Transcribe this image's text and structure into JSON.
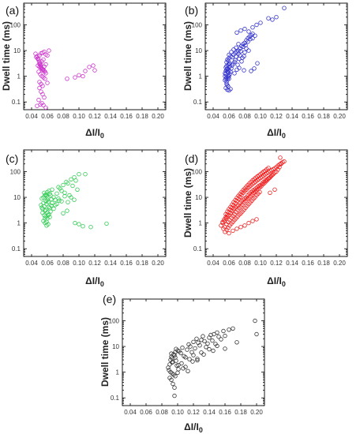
{
  "chart_data": [
    {
      "label": "(a)",
      "type": "scatter",
      "color": "#cc33cc",
      "xlabel": "ΔI/I0",
      "ylabel": "Dwell time (ms)",
      "xlim": [
        0.03,
        0.21
      ],
      "ylim": [
        0.05,
        700
      ],
      "yscale": "log",
      "xticks": [
        "0.04",
        "0.06",
        "0.08",
        "0.10",
        "0.12",
        "0.14",
        "0.16",
        "0.18",
        "0.20"
      ],
      "yticks": [
        "0.1",
        "1",
        "10",
        "100"
      ],
      "x": [
        0.045,
        0.047,
        0.048,
        0.049,
        0.05,
        0.05,
        0.051,
        0.052,
        0.052,
        0.053,
        0.054,
        0.055,
        0.056,
        0.057,
        0.058,
        0.046,
        0.048,
        0.05,
        0.052,
        0.054,
        0.056,
        0.058,
        0.06,
        0.062,
        0.049,
        0.051,
        0.053,
        0.055,
        0.057,
        0.05,
        0.052,
        0.054,
        0.048,
        0.05,
        0.052,
        0.054,
        0.056,
        0.058,
        0.051,
        0.053,
        0.055,
        0.05,
        0.052,
        0.054,
        0.056,
        0.049,
        0.053,
        0.047,
        0.051,
        0.055,
        0.058,
        0.06,
        0.085,
        0.095,
        0.1,
        0.105,
        0.108,
        0.113,
        0.118,
        0.12
      ],
      "y": [
        7.5,
        6.0,
        5.0,
        4.2,
        3.5,
        3.0,
        2.8,
        2.5,
        2.2,
        2.0,
        1.9,
        1.8,
        1.6,
        1.5,
        1.3,
        5.5,
        4.8,
        6.5,
        7.8,
        8.2,
        9.0,
        7.0,
        6.5,
        10.0,
        1.5,
        1.2,
        1.0,
        0.9,
        0.8,
        0.6,
        0.5,
        0.42,
        2.6,
        2.3,
        2.1,
        1.7,
        2.4,
        2.9,
        3.2,
        3.8,
        4.5,
        0.35,
        0.25,
        0.2,
        0.15,
        0.12,
        0.09,
        0.07,
        0.08,
        0.075,
        0.06,
        0.55,
        0.8,
        0.9,
        1.1,
        1.0,
        1.6,
        2.3,
        2.6,
        1.7
      ]
    },
    {
      "label": "(b)",
      "type": "scatter",
      "color": "#3333cc",
      "xlabel": "ΔI/I0",
      "ylabel": "Dwell time (ms)",
      "xlim": [
        0.03,
        0.21
      ],
      "ylim": [
        0.05,
        700
      ],
      "yscale": "log",
      "xticks": [
        "0.04",
        "0.06",
        "0.08",
        "0.10",
        "0.12",
        "0.14",
        "0.16",
        "0.18",
        "0.20"
      ],
      "yticks": [
        "0.1",
        "1",
        "10",
        "100"
      ],
      "x": [
        0.055,
        0.056,
        0.057,
        0.058,
        0.059,
        0.06,
        0.055,
        0.056,
        0.057,
        0.058,
        0.059,
        0.06,
        0.061,
        0.055,
        0.056,
        0.057,
        0.058,
        0.059,
        0.06,
        0.056,
        0.057,
        0.058,
        0.059,
        0.06,
        0.061,
        0.057,
        0.058,
        0.059,
        0.056,
        0.058,
        0.06,
        0.062,
        0.057,
        0.059,
        0.061,
        0.058,
        0.06,
        0.062,
        0.064,
        0.066,
        0.068,
        0.07,
        0.072,
        0.074,
        0.076,
        0.078,
        0.08,
        0.082,
        0.084,
        0.086,
        0.088,
        0.09,
        0.065,
        0.068,
        0.071,
        0.074,
        0.077,
        0.08,
        0.063,
        0.067,
        0.07,
        0.073,
        0.076,
        0.079,
        0.082,
        0.085,
        0.062,
        0.064,
        0.069,
        0.072,
        0.075,
        0.078,
        0.081,
        0.084,
        0.087,
        0.09,
        0.093,
        0.07,
        0.075,
        0.08,
        0.085,
        0.09,
        0.095,
        0.1,
        0.11,
        0.115,
        0.12,
        0.13,
        0.088,
        0.092,
        0.096,
        0.067,
        0.073,
        0.079,
        0.06,
        0.063,
        0.066,
        0.069,
        0.072
      ],
      "y": [
        1.0,
        1.2,
        0.9,
        1.5,
        1.1,
        0.8,
        1.3,
        1.6,
        1.8,
        2.0,
        1.4,
        1.7,
        1.2,
        0.7,
        0.8,
        0.6,
        0.75,
        0.9,
        1.0,
        2.2,
        2.5,
        1.9,
        2.8,
        3.0,
        2.4,
        0.5,
        0.45,
        0.4,
        0.35,
        0.3,
        0.28,
        0.32,
        3.5,
        4.0,
        3.2,
        4.5,
        5.0,
        6.0,
        5.5,
        7.0,
        8.0,
        9.0,
        10.0,
        12.0,
        15.0,
        18.0,
        20.0,
        25.0,
        30.0,
        35.0,
        40.0,
        45.0,
        3.0,
        4.2,
        2.8,
        6.5,
        5.2,
        8.5,
        2.0,
        3.6,
        1.8,
        4.8,
        3.8,
        6.0,
        12.0,
        10.0,
        1.5,
        2.6,
        5.8,
        7.5,
        9.5,
        14.0,
        16.0,
        22.0,
        28.0,
        30.0,
        38.0,
        50.0,
        60.0,
        70.0,
        55.0,
        80.0,
        100.0,
        120.0,
        180.0,
        160.0,
        200.0,
        450.0,
        1.6,
        2.0,
        3.2,
        1.3,
        2.1,
        1.7,
        6.8,
        8.8,
        11.0,
        13.0,
        18.0
      ]
    },
    {
      "label": "(c)",
      "type": "scatter",
      "color": "#33cc55",
      "xlabel": "ΔI/I0",
      "ylabel": "Dwell time (ms)",
      "xlim": [
        0.03,
        0.21
      ],
      "ylim": [
        0.05,
        700
      ],
      "yscale": "log",
      "xticks": [
        "0.04",
        "0.06",
        "0.08",
        "0.10",
        "0.12",
        "0.14",
        "0.16",
        "0.18",
        "0.20"
      ],
      "yticks": [
        "0.1",
        "1",
        "10",
        "100"
      ],
      "x": [
        0.052,
        0.053,
        0.054,
        0.055,
        0.056,
        0.057,
        0.058,
        0.059,
        0.06,
        0.061,
        0.062,
        0.063,
        0.054,
        0.056,
        0.058,
        0.06,
        0.062,
        0.064,
        0.053,
        0.055,
        0.057,
        0.059,
        0.061,
        0.063,
        0.065,
        0.055,
        0.057,
        0.059,
        0.061,
        0.056,
        0.058,
        0.06,
        0.062,
        0.064,
        0.066,
        0.068,
        0.07,
        0.072,
        0.074,
        0.076,
        0.078,
        0.08,
        0.082,
        0.084,
        0.086,
        0.088,
        0.09,
        0.092,
        0.094,
        0.096,
        0.098,
        0.1,
        0.066,
        0.07,
        0.074,
        0.078,
        0.082,
        0.086,
        0.09,
        0.094,
        0.058,
        0.06,
        0.065,
        0.068,
        0.072,
        0.075,
        0.08,
        0.085,
        0.095,
        0.1,
        0.108,
        0.105,
        0.115,
        0.135,
        0.057,
        0.059,
        0.061,
        0.063
      ],
      "y": [
        5.0,
        4.0,
        3.5,
        6.0,
        4.5,
        3.0,
        7.0,
        5.5,
        8.0,
        6.5,
        4.2,
        3.8,
        2.5,
        2.0,
        1.8,
        1.5,
        2.2,
        2.8,
        9.0,
        10.0,
        12.0,
        11.0,
        9.5,
        14.0,
        8.5,
        1.2,
        1.0,
        0.8,
        0.9,
        15.0,
        13.0,
        16.0,
        18.0,
        12.0,
        20.0,
        10.0,
        8.0,
        14.0,
        25.0,
        22.0,
        18.0,
        30.0,
        15.0,
        40.0,
        35.0,
        12.0,
        50.0,
        28.0,
        60.0,
        45.0,
        20.0,
        80.0,
        6.0,
        5.0,
        9.0,
        7.0,
        11.0,
        6.5,
        10.0,
        8.0,
        3.2,
        2.6,
        4.8,
        3.6,
        5.5,
        7.5,
        2.4,
        3.0,
        1.0,
        0.9,
        80.0,
        0.75,
        0.7,
        0.95,
        1.5,
        1.1,
        2.0,
        1.7
      ]
    },
    {
      "label": "(d)",
      "type": "scatter",
      "color": "#ee2222",
      "xlabel": "ΔI/I0",
      "ylabel": "Dwell time (ms)",
      "xlim": [
        0.03,
        0.21
      ],
      "ylim": [
        0.05,
        700
      ],
      "yscale": "log",
      "xticks": [
        "0.04",
        "0.06",
        "0.08",
        "0.10",
        "0.12",
        "0.14",
        "0.16",
        "0.18",
        "0.20"
      ],
      "yticks": [
        "0.1",
        "1",
        "10",
        "100"
      ],
      "x": [
        0.05,
        0.052,
        0.054,
        0.056,
        0.058,
        0.06,
        0.062,
        0.064,
        0.066,
        0.068,
        0.07,
        0.072,
        0.074,
        0.076,
        0.078,
        0.08,
        0.082,
        0.084,
        0.086,
        0.088,
        0.09,
        0.092,
        0.094,
        0.096,
        0.098,
        0.1,
        0.102,
        0.104,
        0.106,
        0.108,
        0.11,
        0.112,
        0.114,
        0.116,
        0.118,
        0.12,
        0.122,
        0.124,
        0.126,
        0.053,
        0.055,
        0.057,
        0.059,
        0.061,
        0.063,
        0.065,
        0.067,
        0.069,
        0.071,
        0.073,
        0.075,
        0.077,
        0.079,
        0.081,
        0.083,
        0.085,
        0.087,
        0.089,
        0.091,
        0.093,
        0.095,
        0.097,
        0.099,
        0.101,
        0.103,
        0.105,
        0.107,
        0.109,
        0.111,
        0.113,
        0.115,
        0.056,
        0.058,
        0.06,
        0.062,
        0.064,
        0.066,
        0.068,
        0.07,
        0.072,
        0.074,
        0.076,
        0.078,
        0.08,
        0.082,
        0.084,
        0.086,
        0.088,
        0.09,
        0.092,
        0.094,
        0.096,
        0.098,
        0.1,
        0.102,
        0.104,
        0.106,
        0.108,
        0.11,
        0.055,
        0.057,
        0.059,
        0.061,
        0.063,
        0.065,
        0.067,
        0.069,
        0.071,
        0.073,
        0.075,
        0.077,
        0.079,
        0.081,
        0.083,
        0.085,
        0.087,
        0.089,
        0.091,
        0.093,
        0.095,
        0.097,
        0.099,
        0.052,
        0.054,
        0.056,
        0.058,
        0.06,
        0.062,
        0.064,
        0.066,
        0.068,
        0.07,
        0.072,
        0.074,
        0.076,
        0.078,
        0.08,
        0.082,
        0.084,
        0.086,
        0.088,
        0.09,
        0.092,
        0.094,
        0.096,
        0.098,
        0.1,
        0.102,
        0.104,
        0.106,
        0.108,
        0.11,
        0.112,
        0.114,
        0.116,
        0.118,
        0.12,
        0.122,
        0.124,
        0.126,
        0.128,
        0.13,
        0.125,
        0.112,
        0.118,
        0.06,
        0.065,
        0.07,
        0.075,
        0.08,
        0.085,
        0.09,
        0.095
      ],
      "y": [
        0.8,
        1.0,
        1.2,
        1.5,
        1.8,
        2.0,
        2.5,
        3.0,
        3.5,
        4.0,
        4.5,
        5.0,
        6.0,
        7.0,
        8.0,
        9.0,
        10.0,
        12.0,
        14.0,
        16.0,
        18.0,
        20.0,
        22.0,
        25.0,
        28.0,
        30.0,
        35.0,
        40.0,
        45.0,
        50.0,
        55.0,
        60.0,
        70.0,
        80.0,
        90.0,
        100.0,
        120.0,
        150.0,
        200.0,
        0.6,
        0.7,
        0.9,
        1.1,
        1.3,
        1.6,
        1.9,
        2.2,
        2.7,
        3.2,
        3.8,
        4.4,
        5.2,
        6.2,
        7.2,
        8.4,
        9.6,
        11.0,
        13.0,
        15.0,
        17.0,
        19.0,
        21.0,
        24.0,
        27.0,
        32.0,
        36.0,
        42.0,
        48.0,
        56.0,
        65.0,
        75.0,
        2.2,
        2.8,
        3.5,
        4.2,
        5.2,
        6.5,
        7.8,
        9.5,
        11.5,
        13.5,
        16.0,
        19.0,
        22.0,
        26.0,
        30.0,
        35.0,
        40.0,
        46.0,
        52.0,
        58.0,
        65.0,
        72.0,
        80.0,
        90.0,
        100.0,
        110.0,
        125.0,
        140.0,
        0.45,
        0.55,
        0.65,
        0.8,
        0.95,
        1.1,
        1.3,
        1.5,
        1.8,
        2.1,
        2.4,
        2.8,
        3.3,
        3.9,
        4.6,
        5.4,
        6.3,
        7.4,
        8.7,
        10.0,
        12.0,
        14.0,
        16.0,
        1.1,
        1.4,
        1.7,
        2.1,
        2.6,
        3.2,
        3.9,
        4.8,
        5.9,
        7.2,
        8.8,
        10.5,
        12.5,
        15.0,
        17.5,
        20.0,
        23.0,
        26.0,
        29.0,
        33.0,
        37.0,
        41.0,
        46.0,
        51.0,
        57.0,
        63.0,
        70.0,
        78.0,
        86.0,
        95.0,
        105.0,
        115.0,
        125.0,
        135.0,
        150.0,
        170.0,
        190.0,
        210.0,
        230.0,
        250.0,
        350.0,
        15.0,
        20.0,
        0.4,
        0.5,
        0.6,
        0.7,
        0.8,
        1.0,
        1.2,
        1.4
      ]
    },
    {
      "label": "(e)",
      "type": "scatter",
      "color": "#333333",
      "xlabel": "ΔI/I0",
      "ylabel": "Dwell time (ms)",
      "xlim": [
        0.03,
        0.21
      ],
      "ylim": [
        0.05,
        700
      ],
      "yscale": "log",
      "xticks": [
        "0.04",
        "0.06",
        "0.08",
        "0.10",
        "0.12",
        "0.14",
        "0.16",
        "0.18",
        "0.20"
      ],
      "yticks": [
        "0.1",
        "1",
        "10",
        "100"
      ],
      "x": [
        0.088,
        0.09,
        0.091,
        0.092,
        0.093,
        0.094,
        0.095,
        0.096,
        0.097,
        0.098,
        0.089,
        0.091,
        0.093,
        0.095,
        0.097,
        0.099,
        0.101,
        0.09,
        0.092,
        0.094,
        0.096,
        0.098,
        0.1,
        0.102,
        0.104,
        0.106,
        0.108,
        0.11,
        0.112,
        0.114,
        0.116,
        0.118,
        0.12,
        0.122,
        0.124,
        0.126,
        0.128,
        0.13,
        0.132,
        0.134,
        0.136,
        0.138,
        0.14,
        0.142,
        0.144,
        0.146,
        0.148,
        0.15,
        0.152,
        0.155,
        0.158,
        0.16,
        0.165,
        0.17,
        0.175,
        0.198,
        0.2,
        0.096,
        0.105,
        0.11,
        0.115,
        0.12,
        0.125,
        0.13,
        0.14,
        0.15,
        0.093,
        0.097,
        0.101,
        0.107,
        0.113,
        0.119,
        0.125,
        0.133,
        0.092,
        0.1,
        0.145,
        0.16
      ],
      "y": [
        1.5,
        2.0,
        3.0,
        4.0,
        3.5,
        2.5,
        5.0,
        4.5,
        6.0,
        2.8,
        1.2,
        1.0,
        0.9,
        0.8,
        0.7,
        1.8,
        1.3,
        0.6,
        0.5,
        0.35,
        0.25,
        8.0,
        7.0,
        6.5,
        5.5,
        9.0,
        4.2,
        3.8,
        7.5,
        12.0,
        10.0,
        6.0,
        15.0,
        8.5,
        20.0,
        14.0,
        11.0,
        18.0,
        25.0,
        16.0,
        9.5,
        13.0,
        22.0,
        28.0,
        17.0,
        30.0,
        12.5,
        35.0,
        24.0,
        19.0,
        40.0,
        26.0,
        45.0,
        50.0,
        14.5,
        100.0,
        30.0,
        0.12,
        2.2,
        1.6,
        3.2,
        4.6,
        2.9,
        5.8,
        7.8,
        10.5,
        2.4,
        3.7,
        1.9,
        1.4,
        1.1,
        2.6,
        3.3,
        4.9,
        5.3,
        0.95,
        6.8,
        8.2
      ]
    }
  ]
}
